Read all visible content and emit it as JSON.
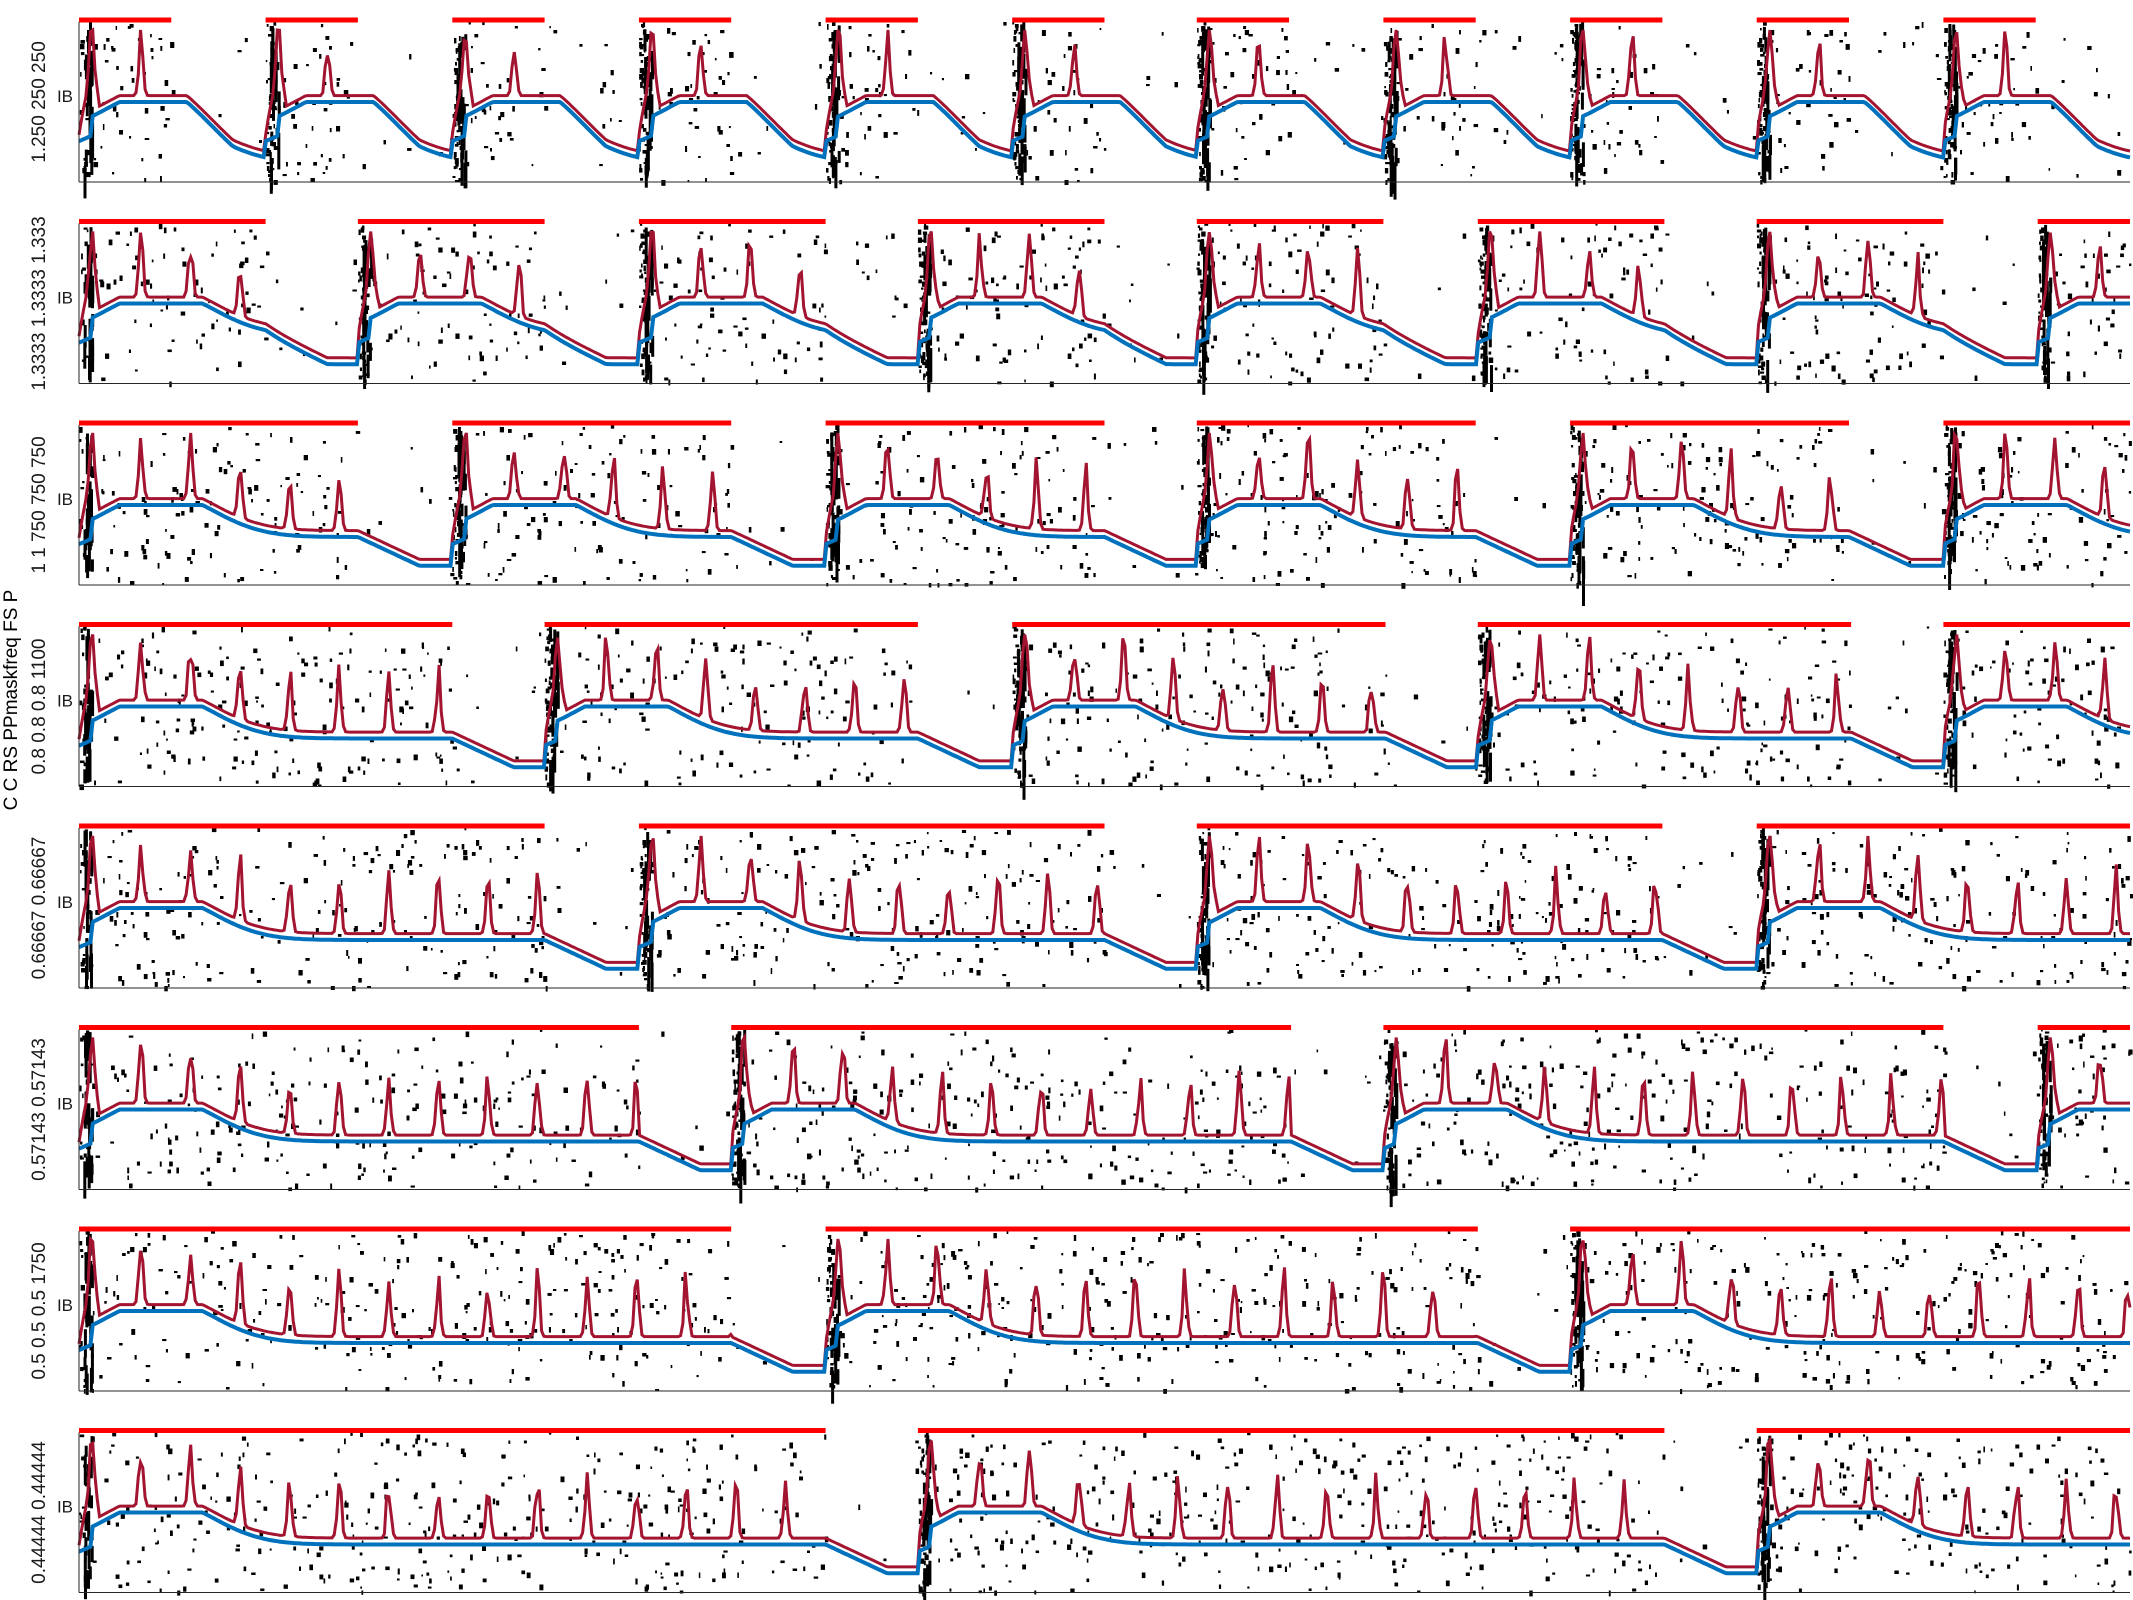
{
  "figure": {
    "ylabel": "C C RS PPmaskfreq FS P",
    "colors": {
      "gate": "#ff0000",
      "spikes": "#000000",
      "red_trace": "#a2142f",
      "blue_trace": "#0072bd",
      "axis": "#262626"
    }
  },
  "chart_data": [
    {
      "type": "line",
      "row_label": "1.250 250 250",
      "ytick": "IB",
      "pulse_starts": [
        0,
        0.091,
        0.182,
        0.273,
        0.364,
        0.455,
        0.545,
        0.636,
        0.727,
        0.818,
        0.909
      ],
      "pulse_width": 0.045,
      "cycle": 0.091
    },
    {
      "type": "line",
      "row_label": "1.3333 1.3333 1.333",
      "ytick": "IB",
      "pulse_starts": [
        0,
        0.136,
        0.273,
        0.409,
        0.545,
        0.682,
        0.818,
        0.955
      ],
      "pulse_width": 0.091,
      "cycle": 0.136
    },
    {
      "type": "line",
      "row_label": "1 1 750 750 750",
      "ytick": "IB",
      "pulse_starts": [
        0,
        0.182,
        0.364,
        0.545,
        0.727,
        0.909
      ],
      "pulse_width": 0.136,
      "cycle": 0.182
    },
    {
      "type": "line",
      "row_label": "0.8 0.8 0.8 1100",
      "ytick": "IB",
      "pulse_starts": [
        0,
        0.227,
        0.455,
        0.682,
        0.909
      ],
      "pulse_width": 0.182,
      "cycle": 0.227
    },
    {
      "type": "line",
      "row_label": "0.66667 0.66667",
      "ytick": "IB",
      "pulse_starts": [
        0,
        0.273,
        0.545,
        0.818
      ],
      "pulse_width": 0.227,
      "cycle": 0.273
    },
    {
      "type": "line",
      "row_label": "0.57143 0.57143",
      "ytick": "IB",
      "pulse_starts": [
        0,
        0.318,
        0.636,
        0.955
      ],
      "pulse_width": 0.273,
      "cycle": 0.318
    },
    {
      "type": "line",
      "row_label": "0.5 0.5 0.5 1750",
      "ytick": "IB",
      "pulse_starts": [
        0,
        0.364,
        0.727
      ],
      "pulse_width": 0.318,
      "cycle": 0.364
    },
    {
      "type": "line",
      "row_label": "0.44444 0.44444",
      "ytick": "IB",
      "pulse_starts": [
        0,
        0.409,
        0.818
      ],
      "pulse_width": 0.364,
      "cycle": 0.409
    }
  ]
}
